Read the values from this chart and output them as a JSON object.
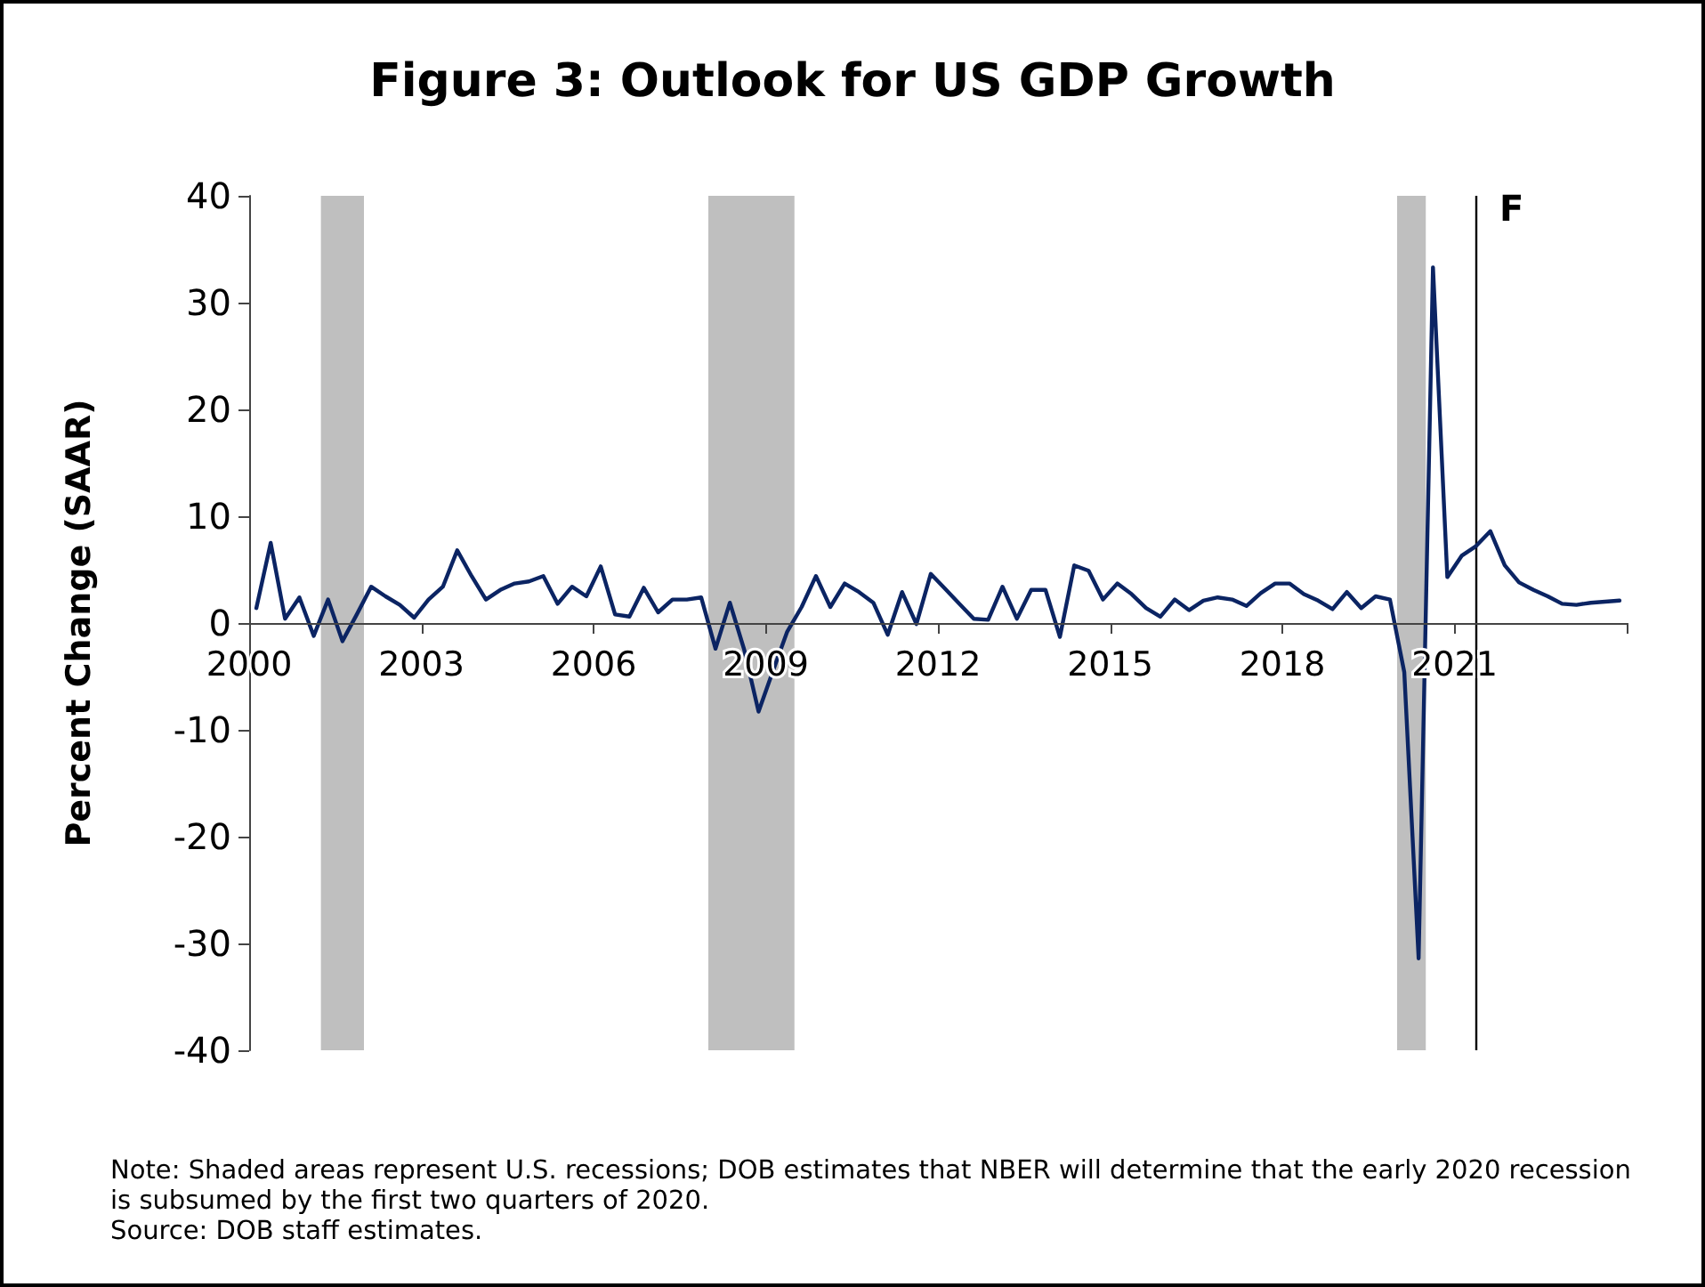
{
  "chart_data": {
    "type": "line",
    "title": "Figure 3: Outlook for US GDP Growth",
    "ylabel": "Percent Change (SAAR)",
    "x": [
      2000.125,
      2000.375,
      2000.625,
      2000.875,
      2001.125,
      2001.375,
      2001.625,
      2001.875,
      2002.125,
      2002.375,
      2002.625,
      2002.875,
      2003.125,
      2003.375,
      2003.625,
      2003.875,
      2004.125,
      2004.375,
      2004.625,
      2004.875,
      2005.125,
      2005.375,
      2005.625,
      2005.875,
      2006.125,
      2006.375,
      2006.625,
      2006.875,
      2007.125,
      2007.375,
      2007.625,
      2007.875,
      2008.125,
      2008.375,
      2008.625,
      2008.875,
      2009.125,
      2009.375,
      2009.625,
      2009.875,
      2010.125,
      2010.375,
      2010.625,
      2010.875,
      2011.125,
      2011.375,
      2011.625,
      2011.875,
      2012.125,
      2012.375,
      2012.625,
      2012.875,
      2013.125,
      2013.375,
      2013.625,
      2013.875,
      2014.125,
      2014.375,
      2014.625,
      2014.875,
      2015.125,
      2015.375,
      2015.625,
      2015.875,
      2016.125,
      2016.375,
      2016.625,
      2016.875,
      2017.125,
      2017.375,
      2017.625,
      2017.875,
      2018.125,
      2018.375,
      2018.625,
      2018.875,
      2019.125,
      2019.375,
      2019.625,
      2019.875,
      2020.125,
      2020.375,
      2020.625,
      2020.875,
      2021.125,
      2021.375,
      2021.625,
      2021.875,
      2022.125,
      2022.375,
      2022.625,
      2022.875,
      2023.125,
      2023.375,
      2023.625,
      2023.875
    ],
    "series": [
      {
        "color": "#0b2463",
        "values": [
          1.4,
          7.5,
          0.4,
          2.4,
          -1.2,
          2.2,
          -1.7,
          0.8,
          3.4,
          2.5,
          1.7,
          0.5,
          2.2,
          3.4,
          6.8,
          4.4,
          2.2,
          3.1,
          3.7,
          3.9,
          4.4,
          1.8,
          3.4,
          2.5,
          5.3,
          0.8,
          0.6,
          3.3,
          1.0,
          2.2,
          2.2,
          2.4,
          -2.4,
          1.9,
          -2.5,
          -8.3,
          -4.5,
          -0.8,
          1.5,
          4.4,
          1.5,
          3.7,
          2.9,
          1.9,
          -1.1,
          2.9,
          -0.1,
          4.6,
          3.2,
          1.8,
          0.4,
          0.3,
          3.4,
          0.4,
          3.1,
          3.1,
          -1.3,
          5.4,
          4.9,
          2.2,
          3.7,
          2.7,
          1.4,
          0.6,
          2.2,
          1.2,
          2.1,
          2.4,
          2.2,
          1.6,
          2.8,
          3.7,
          3.7,
          2.7,
          2.1,
          1.3,
          2.9,
          1.4,
          2.5,
          2.2,
          -4.6,
          -31.4,
          33.3,
          4.3,
          6.3,
          7.2,
          8.6,
          5.4,
          3.8,
          3.1,
          2.5,
          1.8,
          1.7,
          1.9,
          2.0,
          2.1
        ]
      }
    ],
    "xlim": [
      2000,
      2024
    ],
    "xticks": [
      2000,
      2003,
      2006,
      2009,
      2012,
      2015,
      2018,
      2021,
      {
        "value": 2024,
        "label": null
      }
    ],
    "ylim": [
      -40,
      40
    ],
    "yticks": [
      -40,
      -30,
      -20,
      -10,
      0,
      10,
      20,
      30,
      40
    ],
    "bands": [
      {
        "axis": "x",
        "from": 2001.25,
        "to": 2002,
        "color": "#bfbfbf"
      },
      {
        "axis": "x",
        "from": 2008,
        "to": 2009.5,
        "color": "#bfbfbf"
      },
      {
        "axis": "x",
        "from": 2020,
        "to": 2020.5,
        "color": "#bfbfbf"
      }
    ],
    "ref_lines": [
      {
        "axis": "x",
        "value": 2021.375,
        "label": "F",
        "color": "#000000"
      }
    ],
    "grid": false,
    "marker": "none",
    "line_style": "solid",
    "annotations": [
      "Note: Shaded areas represent U.S. recessions; DOB estimates that NBER will determine that the early 2020 recession is subsumed by the first two quarters of 2020.",
      "Source: DOB staff estimates."
    ]
  }
}
